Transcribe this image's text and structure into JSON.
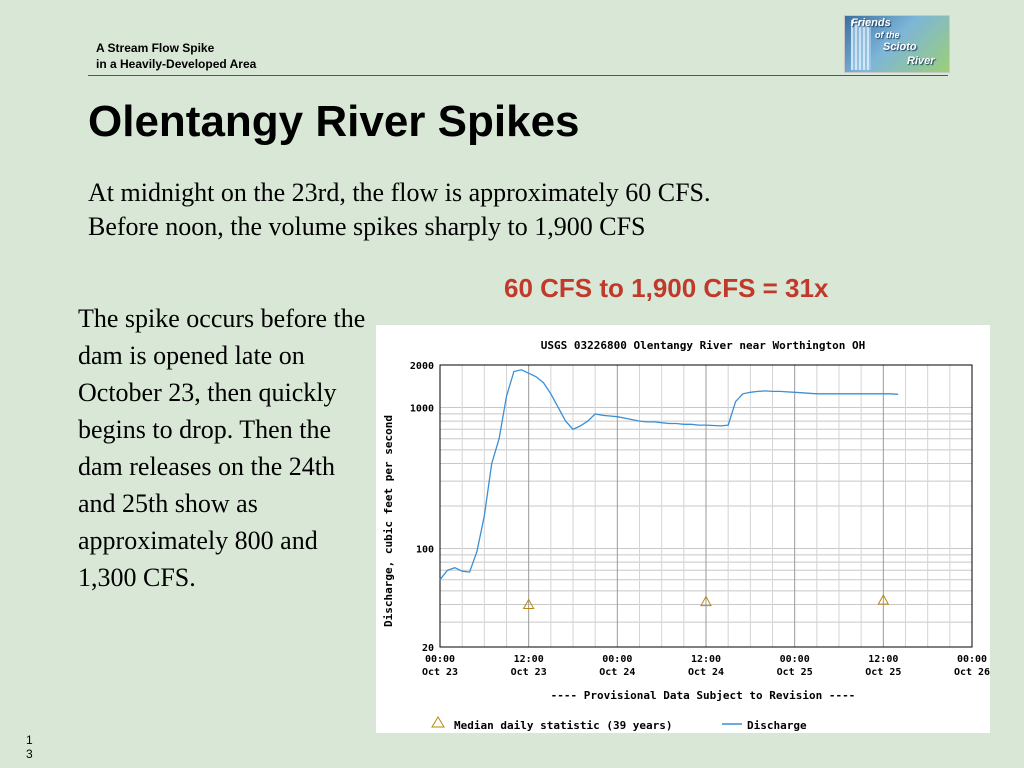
{
  "slide": {
    "header_line1": "A Stream Flow Spike",
    "header_line2": "in a Heavily-Developed Area",
    "logo_text": [
      "Friends",
      "of the",
      "Scioto",
      "River"
    ],
    "title": "Olentangy River Spikes",
    "intro_line1": "At midnight on the 23rd, the flow is approximately 60 CFS.",
    "intro_line2": "Before noon, the volume spikes sharply to 1,900 CFS",
    "ratio_text": "60 CFS to 1,900 CFS = 31x",
    "side_text": "The spike occurs before the dam is opened late on October 23, then quickly begins to drop.  Then the dam releases on the 24th and 25th show as approximately 800 and 1,300 CFS.",
    "page_number": "13",
    "ratio_color": "#c0392b"
  },
  "chart_data": {
    "type": "line",
    "title": "USGS 03226800 Olentangy River near Worthington OH",
    "ylabel": "Discharge, cubic feet per second",
    "y_scale": "log",
    "ylim": [
      20,
      2000
    ],
    "y_ticks": [
      {
        "value": 2000,
        "label": "2000"
      },
      {
        "value": 1000,
        "label": "1000"
      },
      {
        "value": 100,
        "label": "100"
      },
      {
        "value": 20,
        "label": "20"
      }
    ],
    "xlim_hours": [
      0,
      72
    ],
    "x_ticks": [
      {
        "hour": 0,
        "line1": "00:00",
        "line2": "Oct 23"
      },
      {
        "hour": 12,
        "line1": "12:00",
        "line2": "Oct 23"
      },
      {
        "hour": 24,
        "line1": "00:00",
        "line2": "Oct 24"
      },
      {
        "hour": 36,
        "line1": "12:00",
        "line2": "Oct 24"
      },
      {
        "hour": 48,
        "line1": "00:00",
        "line2": "Oct 25"
      },
      {
        "hour": 60,
        "line1": "12:00",
        "line2": "Oct 25"
      },
      {
        "hour": 72,
        "line1": "00:00",
        "line2": "Oct 26"
      }
    ],
    "provisional_note": "---- Provisional Data Subject to Revision ----",
    "legend": {
      "median_label": "Median daily statistic (39 years)",
      "discharge_label": "Discharge"
    },
    "grid": true,
    "colors": {
      "discharge": "#3a8fd6",
      "median": "#b8860b",
      "provisional": "#e02020"
    },
    "series": [
      {
        "name": "Discharge",
        "x_hours": [
          0,
          1,
          2,
          3,
          4,
          5,
          6,
          7,
          8,
          9,
          10,
          11,
          12,
          13,
          14,
          15,
          16,
          17,
          18,
          19,
          20,
          21,
          22,
          23,
          24,
          25,
          26,
          27,
          28,
          29,
          30,
          31,
          32,
          33,
          34,
          35,
          36,
          37,
          38,
          39,
          40,
          41,
          42,
          43,
          44,
          45,
          46,
          47,
          48,
          49,
          50,
          51,
          52,
          53,
          54,
          55,
          56,
          57,
          58,
          59,
          60,
          61,
          62
        ],
        "y_cfs": [
          60,
          70,
          73,
          69,
          68,
          95,
          170,
          400,
          600,
          1200,
          1800,
          1850,
          1750,
          1650,
          1500,
          1250,
          1000,
          800,
          700,
          740,
          800,
          900,
          880,
          870,
          860,
          840,
          820,
          800,
          790,
          790,
          780,
          770,
          770,
          760,
          760,
          750,
          750,
          745,
          740,
          750,
          1100,
          1250,
          1280,
          1300,
          1310,
          1300,
          1300,
          1290,
          1280,
          1270,
          1260,
          1250,
          1250,
          1250,
          1250,
          1250,
          1250,
          1250,
          1250,
          1250,
          1250,
          1250,
          1240
        ]
      },
      {
        "name": "Median daily statistic (39 years)",
        "x_hours": [
          12,
          36,
          60
        ],
        "y_cfs": [
          40,
          42,
          43
        ]
      }
    ]
  }
}
